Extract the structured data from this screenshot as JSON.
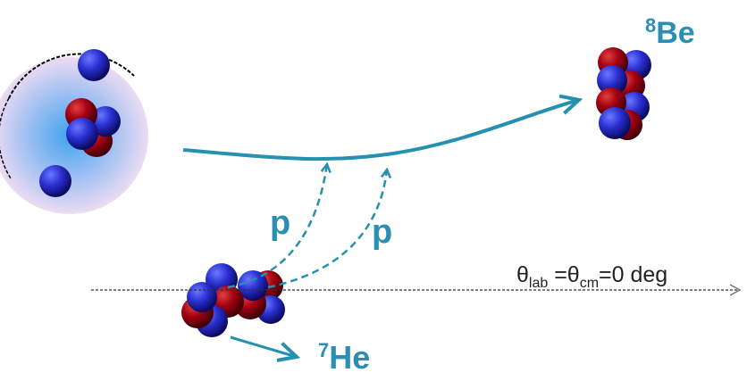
{
  "labels": {
    "product": {
      "mass": "8",
      "symbol": "Be"
    },
    "proton_left": "p",
    "proton_right": "p",
    "angle": {
      "theta1": "θ",
      "sub1": "lab",
      "mid": " =θ",
      "sub2": "cm",
      "tail": "=0 deg"
    },
    "projectile": {
      "mass": "7",
      "symbol": "He"
    }
  }
}
